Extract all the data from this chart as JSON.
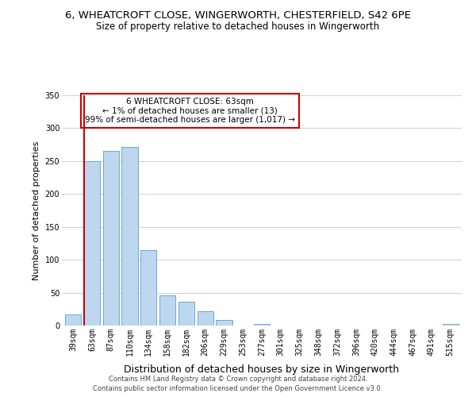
{
  "title": "6, WHEATCROFT CLOSE, WINGERWORTH, CHESTERFIELD, S42 6PE",
  "subtitle": "Size of property relative to detached houses in Wingerworth",
  "xlabel": "Distribution of detached houses by size in Wingerworth",
  "ylabel": "Number of detached properties",
  "bar_labels": [
    "39sqm",
    "63sqm",
    "87sqm",
    "110sqm",
    "134sqm",
    "158sqm",
    "182sqm",
    "206sqm",
    "229sqm",
    "253sqm",
    "277sqm",
    "301sqm",
    "325sqm",
    "348sqm",
    "372sqm",
    "396sqm",
    "420sqm",
    "444sqm",
    "467sqm",
    "491sqm",
    "515sqm"
  ],
  "bar_values": [
    17,
    250,
    265,
    272,
    115,
    46,
    36,
    22,
    9,
    0,
    2,
    0,
    0,
    0,
    0,
    0,
    0,
    0,
    0,
    0,
    2
  ],
  "bar_color": "#bdd7ee",
  "bar_edge_color": "#5b9bd5",
  "highlight_idx": 1,
  "highlight_color": "#cc0000",
  "annotation_title": "6 WHEATCROFT CLOSE: 63sqm",
  "annotation_line2": "← 1% of detached houses are smaller (13)",
  "annotation_line3": "99% of semi-detached houses are larger (1,017) →",
  "annotation_box_color": "#ffffff",
  "annotation_box_edge": "#cc0000",
  "ylim": [
    0,
    350
  ],
  "yticks": [
    0,
    50,
    100,
    150,
    200,
    250,
    300,
    350
  ],
  "footer1": "Contains HM Land Registry data © Crown copyright and database right 2024.",
  "footer2": "Contains public sector information licensed under the Open Government Licence v3.0.",
  "bg_color": "#ffffff",
  "grid_color": "#d0d0d0",
  "title_fontsize": 9.5,
  "subtitle_fontsize": 8.5,
  "ylabel_fontsize": 8,
  "xlabel_fontsize": 9,
  "tick_fontsize": 7,
  "footer_fontsize": 6
}
